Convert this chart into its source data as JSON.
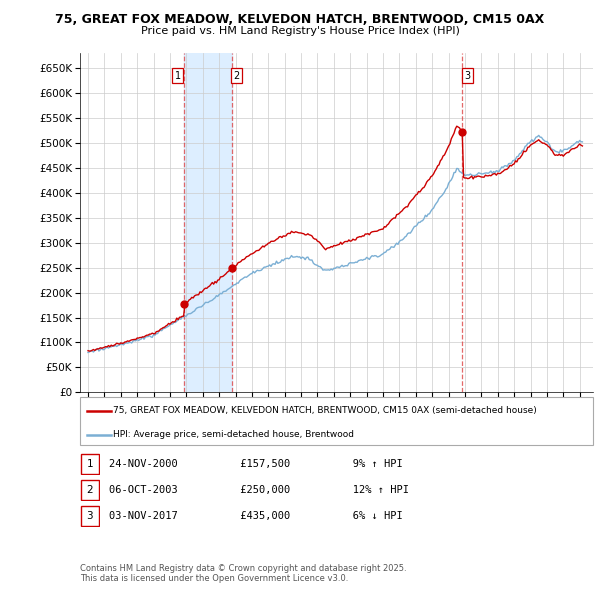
{
  "title": "75, GREAT FOX MEADOW, KELVEDON HATCH, BRENTWOOD, CM15 0AX",
  "subtitle": "Price paid vs. HM Land Registry's House Price Index (HPI)",
  "ylim": [
    0,
    680000
  ],
  "yticks": [
    0,
    50000,
    100000,
    150000,
    200000,
    250000,
    300000,
    350000,
    400000,
    450000,
    500000,
    550000,
    600000,
    650000
  ],
  "line1_color": "#cc0000",
  "line2_color": "#7bafd4",
  "vline_color": "#dd4444",
  "shade_color": "#ddeeff",
  "dot_color": "#cc0000",
  "transactions": [
    {
      "label": "1",
      "date": "24-NOV-2000",
      "price": 157500,
      "pct": "9%",
      "dir": "↑",
      "year": 2000.878
    },
    {
      "label": "2",
      "date": "06-OCT-2003",
      "price": 250000,
      "pct": "12%",
      "dir": "↑",
      "year": 2003.756
    },
    {
      "label": "3",
      "date": "03-NOV-2017",
      "price": 435000,
      "pct": "6%",
      "dir": "↓",
      "year": 2017.84
    }
  ],
  "legend_line1": "75, GREAT FOX MEADOW, KELVEDON HATCH, BRENTWOOD, CM15 0AX (semi-detached house)",
  "legend_line2": "HPI: Average price, semi-detached house, Brentwood",
  "footer": "Contains HM Land Registry data © Crown copyright and database right 2025.\nThis data is licensed under the Open Government Licence v3.0.",
  "background_color": "#ffffff",
  "grid_color": "#cccccc",
  "xlim_left": 1994.5,
  "xlim_right": 2025.8
}
